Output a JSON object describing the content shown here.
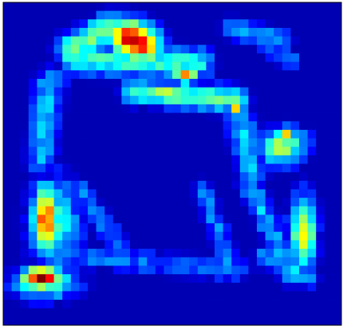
{
  "chart_data": {
    "type": "heatmap",
    "title": "",
    "xlabel": "",
    "ylabel": "",
    "grid": false,
    "legend": "none",
    "colormap": "jet",
    "value_range": [
      0,
      1
    ],
    "background_value": 0.05,
    "n_cols": 40,
    "n_rows": 38,
    "colors": {
      "plot_border": "#000000",
      "background": "#ffffff"
    },
    "features": [
      {
        "name": "top-hotspot",
        "kind": "blob",
        "cx": 15.5,
        "cy": 4.5,
        "rx": 4.0,
        "ry": 2.6,
        "angle": 28,
        "v": 0.97
      },
      {
        "name": "top-arm-left",
        "kind": "segment",
        "x1": 8.0,
        "y1": 5.5,
        "x2": 12.5,
        "y2": 3.0,
        "w": 1.3,
        "v": 0.5
      },
      {
        "name": "top-band",
        "kind": "segment",
        "x1": 8.5,
        "y1": 6.8,
        "x2": 23.0,
        "y2": 7.2,
        "w": 1.3,
        "v": 0.42
      },
      {
        "name": "top-right-strip",
        "kind": "segment",
        "x1": 27.0,
        "y1": 3.0,
        "x2": 33.0,
        "y2": 4.5,
        "w": 0.9,
        "v": 0.3
      },
      {
        "name": "top-right-strip-2",
        "kind": "segment",
        "x1": 31.0,
        "y1": 5.0,
        "x2": 34.0,
        "y2": 7.0,
        "w": 0.8,
        "v": 0.25
      },
      {
        "name": "center-hotspot",
        "kind": "blob",
        "cx": 21.5,
        "cy": 8.8,
        "rx": 1.7,
        "ry": 0.9,
        "angle": 0,
        "v": 0.9
      },
      {
        "name": "center-left-hotspot",
        "kind": "blob",
        "cx": 19.0,
        "cy": 10.8,
        "rx": 1.3,
        "ry": 0.8,
        "angle": 0,
        "v": 0.82
      },
      {
        "name": "center-band",
        "kind": "segment",
        "x1": 15.5,
        "y1": 10.5,
        "x2": 27.5,
        "y2": 11.5,
        "w": 1.1,
        "v": 0.46
      },
      {
        "name": "center-right-yellow",
        "kind": "blob",
        "cx": 27.6,
        "cy": 12.2,
        "rx": 1.0,
        "ry": 1.6,
        "angle": 0,
        "v": 0.7
      },
      {
        "name": "left-arm",
        "kind": "segment",
        "x1": 5.5,
        "y1": 9.5,
        "x2": 4.5,
        "y2": 18.5,
        "w": 1.3,
        "v": 0.3
      },
      {
        "name": "right-arm-top",
        "kind": "segment",
        "x1": 28.0,
        "y1": 13.5,
        "x2": 29.5,
        "y2": 20.0,
        "w": 1.3,
        "v": 0.32
      },
      {
        "name": "right-blob",
        "kind": "blob",
        "cx": 33.0,
        "cy": 17.0,
        "rx": 3.4,
        "ry": 2.6,
        "angle": -20,
        "v": 0.55
      },
      {
        "name": "right-blob-inner",
        "kind": "blob",
        "cx": 33.2,
        "cy": 15.8,
        "rx": 1.6,
        "ry": 1.0,
        "angle": -20,
        "v": 0.72
      },
      {
        "name": "right-arm-lower",
        "kind": "segment",
        "x1": 29.0,
        "y1": 21.0,
        "x2": 34.0,
        "y2": 32.0,
        "w": 1.0,
        "v": 0.3
      },
      {
        "name": "right-long",
        "kind": "blob",
        "cx": 35.5,
        "cy": 27.0,
        "rx": 1.9,
        "ry": 5.2,
        "angle": 0,
        "v": 0.62
      },
      {
        "name": "right-long-inner",
        "kind": "blob",
        "cx": 35.8,
        "cy": 27.2,
        "rx": 0.9,
        "ry": 3.2,
        "angle": 0,
        "v": 0.76
      },
      {
        "name": "left-hotspot",
        "kind": "blob",
        "cx": 5.0,
        "cy": 25.5,
        "rx": 2.0,
        "ry": 4.6,
        "angle": 0,
        "v": 0.82
      },
      {
        "name": "left-hotspot-halo",
        "kind": "blob",
        "cx": 6.0,
        "cy": 26.0,
        "rx": 3.8,
        "ry": 6.5,
        "angle": 0,
        "v": 0.42
      },
      {
        "name": "bottom-left-hotspot",
        "kind": "blob",
        "cx": 4.5,
        "cy": 32.5,
        "rx": 3.1,
        "ry": 1.6,
        "angle": 0,
        "v": 0.98
      },
      {
        "name": "bottom-left-halo",
        "kind": "blob",
        "cx": 5.0,
        "cy": 33.0,
        "rx": 4.8,
        "ry": 2.5,
        "angle": 0,
        "v": 0.45
      },
      {
        "name": "bottom-band",
        "kind": "segment",
        "x1": 8.5,
        "y1": 30.0,
        "x2": 28.0,
        "y2": 31.5,
        "w": 1.0,
        "v": 0.22
      },
      {
        "name": "mid-lower-left-arm",
        "kind": "segment",
        "x1": 9.0,
        "y1": 22.0,
        "x2": 14.0,
        "y2": 29.0,
        "w": 0.9,
        "v": 0.24
      },
      {
        "name": "mid-lower-right-arm",
        "kind": "segment",
        "x1": 23.5,
        "y1": 22.0,
        "x2": 27.0,
        "y2": 31.0,
        "w": 0.9,
        "v": 0.24
      },
      {
        "name": "right-edge-lower",
        "kind": "segment",
        "x1": 31.0,
        "y1": 30.0,
        "x2": 36.0,
        "y2": 32.5,
        "w": 0.9,
        "v": 0.32
      }
    ]
  }
}
